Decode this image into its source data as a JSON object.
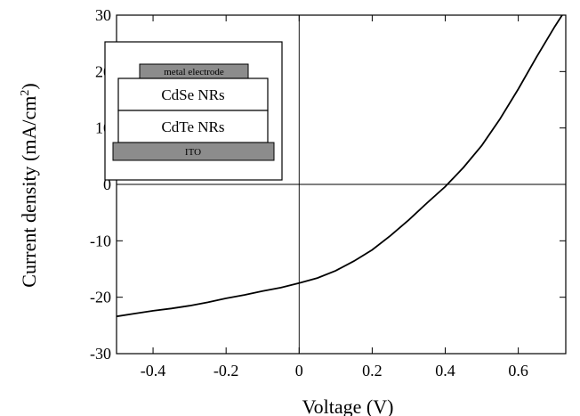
{
  "chart_data": {
    "type": "line",
    "xlabel": "Voltage (V)",
    "ylabel": "Current density (mA/cm",
    "ylabel_sup": "2",
    "ylabel_end": ")",
    "xlim": [
      -0.5,
      0.73
    ],
    "ylim": [
      -30,
      30
    ],
    "xticks": [
      -0.4,
      -0.2,
      0,
      0.2,
      0.4,
      0.6
    ],
    "xtick_labels": [
      "-0.4",
      "-0.2",
      "0",
      "0.2",
      "0.4",
      "0.6"
    ],
    "yticks": [
      -30,
      -20,
      -10,
      0,
      10,
      20,
      30
    ],
    "ytick_labels": [
      "-30",
      "-20",
      "-10",
      "0",
      "10",
      "20",
      "30"
    ],
    "grid": false,
    "zero_lines": true,
    "series": [
      {
        "color": "#000000",
        "x": [
          -0.5,
          -0.45,
          -0.4,
          -0.35,
          -0.3,
          -0.25,
          -0.2,
          -0.15,
          -0.1,
          -0.05,
          0.0,
          0.05,
          0.1,
          0.15,
          0.2,
          0.25,
          0.3,
          0.35,
          0.4,
          0.45,
          0.5,
          0.55,
          0.6,
          0.65,
          0.7,
          0.73
        ],
        "y": [
          -23.4,
          -22.9,
          -22.4,
          -22.0,
          -21.5,
          -20.9,
          -20.2,
          -19.6,
          -18.9,
          -18.3,
          -17.5,
          -16.6,
          -15.3,
          -13.6,
          -11.6,
          -9.1,
          -6.3,
          -3.3,
          -0.4,
          3.0,
          6.9,
          11.6,
          16.9,
          22.6,
          28.0,
          31.0
        ]
      }
    ],
    "inset": {
      "layers": [
        "metal electrode",
        "CdSe NRs",
        "CdTe NRs",
        "ITO"
      ]
    }
  }
}
